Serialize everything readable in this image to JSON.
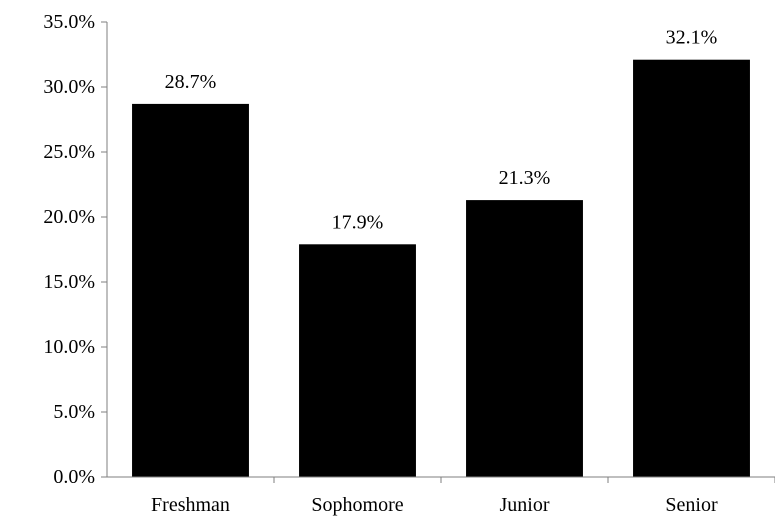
{
  "chart_data": {
    "type": "bar",
    "categories": [
      "Freshman",
      "Sophomore",
      "Junior",
      "Senior"
    ],
    "values": [
      28.7,
      17.9,
      21.3,
      32.1
    ],
    "data_labels": [
      "28.7%",
      "17.9%",
      "21.3%",
      "32.1%"
    ],
    "y_ticks": [
      0,
      5,
      10,
      15,
      20,
      25,
      30,
      35
    ],
    "y_tick_labels": [
      "0.0%",
      "5.0%",
      "10.0%",
      "15.0%",
      "20.0%",
      "25.0%",
      "30.0%",
      "35.0%"
    ],
    "ylim": [
      0,
      35
    ],
    "title": "",
    "xlabel": "",
    "ylabel": "",
    "grid": false,
    "legend": "none",
    "bar_color": "#000000",
    "axis_color": "#7f7f7f"
  }
}
